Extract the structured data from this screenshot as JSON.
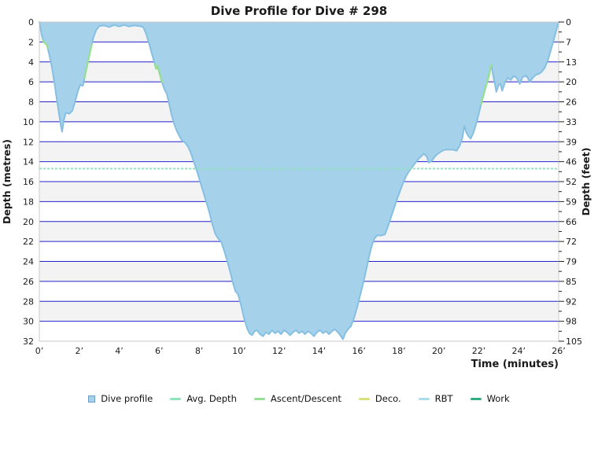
{
  "chart_data": {
    "type": "area",
    "title": "Dive Profile for Dive # 298",
    "xlabel": "Time (minutes)",
    "ylabel_left": "Depth (metres)",
    "ylabel_right": "Depth (feet)",
    "xlim": [
      0,
      26
    ],
    "ylim_metres": [
      0,
      32
    ],
    "grid": "horizontal-blue-lines, alternating gray/white depth bands",
    "legend_position": "bottom-center",
    "x_tick_labels": [
      "0’",
      "2’",
      "4’",
      "6’",
      "8’",
      "10’",
      "12’",
      "14’",
      "16’",
      "18’",
      "20’",
      "22’",
      "24’",
      "26’"
    ],
    "y_left_tick_labels": [
      "0",
      "2",
      "4",
      "6",
      "8",
      "10",
      "12",
      "14",
      "16",
      "18",
      "20",
      "22",
      "24",
      "26",
      "28",
      "30",
      "32"
    ],
    "y_right_tick_labels": [
      "0",
      "7",
      "13",
      "20",
      "26",
      "33",
      "39",
      "46",
      "52",
      "59",
      "66",
      "72",
      "79",
      "85",
      "92",
      "98",
      "105"
    ],
    "avg_depth_metres": 14.7,
    "max_depth_metres": 31.8,
    "duration_minutes": 26,
    "series": [
      {
        "name": "Dive profile",
        "units": [
          "minutes",
          "metres"
        ],
        "points": [
          [
            0,
            0
          ],
          [
            0.12,
            1.3
          ],
          [
            0.22,
            2.0
          ],
          [
            0.38,
            2.3
          ],
          [
            0.5,
            3.3
          ],
          [
            0.62,
            4.4
          ],
          [
            0.75,
            6.0
          ],
          [
            0.88,
            7.8
          ],
          [
            1.0,
            9.4
          ],
          [
            1.08,
            10.4
          ],
          [
            1.14,
            11.0
          ],
          [
            1.22,
            9.9
          ],
          [
            1.32,
            9.1
          ],
          [
            1.5,
            9.2
          ],
          [
            1.65,
            8.9
          ],
          [
            1.8,
            7.9
          ],
          [
            1.95,
            6.8
          ],
          [
            2.05,
            6.3
          ],
          [
            2.18,
            6.4
          ],
          [
            2.3,
            5.2
          ],
          [
            2.42,
            4.1
          ],
          [
            2.55,
            2.9
          ],
          [
            2.7,
            1.6
          ],
          [
            2.85,
            0.8
          ],
          [
            3.0,
            0.4
          ],
          [
            3.25,
            0.35
          ],
          [
            3.5,
            0.5
          ],
          [
            3.75,
            0.3
          ],
          [
            4.0,
            0.45
          ],
          [
            4.25,
            0.3
          ],
          [
            4.5,
            0.45
          ],
          [
            4.75,
            0.35
          ],
          [
            5.0,
            0.4
          ],
          [
            5.2,
            0.5
          ],
          [
            5.35,
            1.2
          ],
          [
            5.5,
            2.2
          ],
          [
            5.62,
            3.1
          ],
          [
            5.75,
            4.0
          ],
          [
            5.85,
            4.7
          ],
          [
            5.92,
            4.4
          ],
          [
            6.0,
            5.0
          ],
          [
            6.12,
            5.9
          ],
          [
            6.25,
            6.7
          ],
          [
            6.38,
            7.2
          ],
          [
            6.5,
            8.2
          ],
          [
            6.62,
            9.3
          ],
          [
            6.75,
            10.2
          ],
          [
            6.88,
            10.9
          ],
          [
            7.0,
            11.4
          ],
          [
            7.15,
            11.9
          ],
          [
            7.3,
            12.1
          ],
          [
            7.45,
            12.5
          ],
          [
            7.6,
            13.2
          ],
          [
            7.75,
            14.1
          ],
          [
            7.9,
            15.0
          ],
          [
            8.05,
            16.0
          ],
          [
            8.2,
            17.0
          ],
          [
            8.35,
            18.0
          ],
          [
            8.5,
            19.0
          ],
          [
            8.65,
            20.2
          ],
          [
            8.8,
            21.2
          ],
          [
            8.95,
            21.7
          ],
          [
            9.1,
            22.0
          ],
          [
            9.25,
            22.9
          ],
          [
            9.4,
            23.9
          ],
          [
            9.55,
            25.0
          ],
          [
            9.7,
            26.2
          ],
          [
            9.82,
            27.0
          ],
          [
            9.95,
            27.3
          ],
          [
            10.1,
            28.4
          ],
          [
            10.25,
            29.7
          ],
          [
            10.4,
            30.7
          ],
          [
            10.52,
            31.2
          ],
          [
            10.65,
            31.4
          ],
          [
            10.78,
            31.0
          ],
          [
            10.9,
            30.9
          ],
          [
            11.05,
            31.3
          ],
          [
            11.2,
            31.5
          ],
          [
            11.35,
            31.1
          ],
          [
            11.5,
            31.3
          ],
          [
            11.65,
            30.9
          ],
          [
            11.8,
            31.2
          ],
          [
            11.95,
            31.0
          ],
          [
            12.1,
            31.3
          ],
          [
            12.25,
            30.9
          ],
          [
            12.4,
            31.1
          ],
          [
            12.55,
            31.4
          ],
          [
            12.7,
            31.1
          ],
          [
            12.85,
            30.9
          ],
          [
            13.0,
            31.2
          ],
          [
            13.15,
            31.0
          ],
          [
            13.3,
            31.3
          ],
          [
            13.45,
            31.0
          ],
          [
            13.6,
            31.2
          ],
          [
            13.75,
            31.5
          ],
          [
            13.9,
            31.1
          ],
          [
            14.05,
            30.9
          ],
          [
            14.2,
            31.2
          ],
          [
            14.35,
            31.0
          ],
          [
            14.5,
            31.3
          ],
          [
            14.65,
            31.0
          ],
          [
            14.8,
            30.8
          ],
          [
            14.95,
            31.1
          ],
          [
            15.1,
            31.5
          ],
          [
            15.2,
            31.8
          ],
          [
            15.32,
            31.2
          ],
          [
            15.45,
            30.8
          ],
          [
            15.6,
            30.5
          ],
          [
            15.75,
            29.7
          ],
          [
            15.9,
            28.7
          ],
          [
            16.05,
            27.5
          ],
          [
            16.2,
            26.3
          ],
          [
            16.35,
            25.0
          ],
          [
            16.5,
            23.6
          ],
          [
            16.62,
            22.6
          ],
          [
            16.75,
            21.8
          ],
          [
            16.9,
            21.4
          ],
          [
            17.1,
            21.4
          ],
          [
            17.3,
            21.3
          ],
          [
            17.45,
            20.5
          ],
          [
            17.6,
            19.6
          ],
          [
            17.75,
            18.7
          ],
          [
            17.9,
            17.8
          ],
          [
            18.05,
            17.0
          ],
          [
            18.2,
            16.2
          ],
          [
            18.35,
            15.5
          ],
          [
            18.5,
            15.0
          ],
          [
            18.65,
            14.6
          ],
          [
            18.8,
            14.2
          ],
          [
            18.95,
            13.8
          ],
          [
            19.1,
            13.5
          ],
          [
            19.25,
            13.2
          ],
          [
            19.4,
            13.5
          ],
          [
            19.5,
            14.1
          ],
          [
            19.65,
            13.9
          ],
          [
            19.8,
            13.5
          ],
          [
            19.95,
            13.2
          ],
          [
            20.1,
            13.0
          ],
          [
            20.3,
            12.8
          ],
          [
            20.5,
            12.8
          ],
          [
            20.7,
            12.8
          ],
          [
            20.9,
            12.9
          ],
          [
            21.05,
            12.4
          ],
          [
            21.18,
            11.6
          ],
          [
            21.28,
            10.4
          ],
          [
            21.38,
            11.1
          ],
          [
            21.5,
            11.5
          ],
          [
            21.6,
            11.7
          ],
          [
            21.75,
            11.0
          ],
          [
            21.9,
            10.0
          ],
          [
            22.05,
            8.8
          ],
          [
            22.2,
            7.6
          ],
          [
            22.35,
            6.5
          ],
          [
            22.5,
            5.4
          ],
          [
            22.62,
            4.3
          ],
          [
            22.75,
            5.6
          ],
          [
            22.88,
            7.0
          ],
          [
            23.0,
            6.3
          ],
          [
            23.08,
            6.2
          ],
          [
            23.17,
            6.9
          ],
          [
            23.3,
            6.1
          ],
          [
            23.45,
            5.6
          ],
          [
            23.6,
            5.8
          ],
          [
            23.75,
            5.4
          ],
          [
            23.9,
            5.6
          ],
          [
            24.05,
            6.2
          ],
          [
            24.2,
            5.5
          ],
          [
            24.4,
            5.4
          ],
          [
            24.55,
            6.0
          ],
          [
            24.7,
            5.6
          ],
          [
            24.85,
            5.3
          ],
          [
            25.0,
            5.2
          ],
          [
            25.15,
            5.0
          ],
          [
            25.3,
            4.6
          ],
          [
            25.45,
            3.9
          ],
          [
            25.6,
            2.9
          ],
          [
            25.75,
            1.8
          ],
          [
            25.88,
            0.8
          ],
          [
            26,
            0
          ]
        ]
      }
    ],
    "ascent_descent_time_ranges": [
      [
        0.2,
        0.42
      ],
      [
        2.26,
        2.62
      ],
      [
        5.78,
        6.14
      ],
      [
        22.12,
        22.62
      ]
    ]
  },
  "colors": {
    "profile_fill": "#a6d1ea",
    "profile_stroke": "#85c0e2",
    "avg_depth": "#8fe3bd",
    "ascent_descent": "#97de96",
    "deco": "#d9df7d",
    "rbt": "#abdbee",
    "work": "#32ac83",
    "gridline": "#2323cc",
    "band_gray": "#f3f3f4",
    "frame": "#c9c9c9",
    "swatch_border": "#6b9dc6"
  },
  "legend": {
    "items": [
      {
        "label": "Dive profile",
        "swatch": "square",
        "color": "#a6d1ea"
      },
      {
        "label": "Avg. Depth",
        "swatch": "line",
        "color": "#8fe3bd"
      },
      {
        "label": "Ascent/Descent",
        "swatch": "line",
        "color": "#97de96"
      },
      {
        "label": "Deco.",
        "swatch": "line",
        "color": "#d9df7d"
      },
      {
        "label": "RBT",
        "swatch": "line",
        "color": "#abdbee"
      },
      {
        "label": "Work",
        "swatch": "line",
        "color": "#32ac83"
      }
    ]
  }
}
